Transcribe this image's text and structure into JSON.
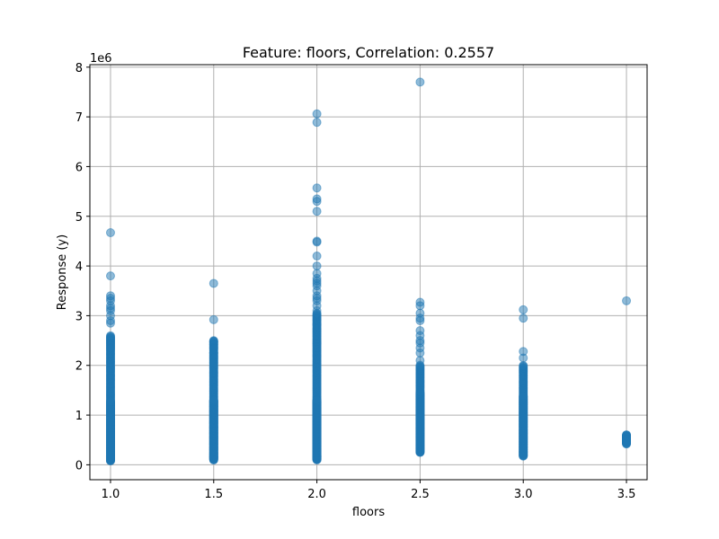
{
  "chart_data": {
    "type": "scatter",
    "title": "Feature: floors, Correlation: 0.2557",
    "xlabel": "floors",
    "ylabel": "Response (y)",
    "y_offset_label": "1e6",
    "xlim": [
      0.9,
      3.6
    ],
    "ylim": [
      -0.3,
      8.05
    ],
    "y_scale_factor": 1000000,
    "x_ticks": [
      1.0,
      1.5,
      2.0,
      2.5,
      3.0,
      3.5
    ],
    "x_tick_labels": [
      "1.0",
      "1.5",
      "2.0",
      "2.5",
      "3.0",
      "3.5"
    ],
    "y_ticks": [
      0,
      1,
      2,
      3,
      4,
      5,
      6,
      7,
      8
    ],
    "y_tick_labels": [
      "0",
      "1",
      "2",
      "3",
      "4",
      "5",
      "6",
      "7",
      "8"
    ],
    "grid": true,
    "marker_color": "#1f77b4",
    "marker_alpha": 0.5,
    "groups": [
      {
        "x": 1.0,
        "dense_range": [
          0.08,
          2.6
        ],
        "points": [
          4.67,
          3.8,
          3.4,
          3.35,
          3.3,
          3.2,
          3.15,
          3.1,
          3.0,
          2.9,
          2.85,
          2.55,
          2.5,
          2.45,
          2.4,
          2.35
        ]
      },
      {
        "x": 1.5,
        "dense_range": [
          0.1,
          2.5
        ],
        "points": [
          3.65,
          2.92,
          2.48,
          2.42,
          2.35,
          2.25,
          2.15,
          2.05
        ]
      },
      {
        "x": 2.0,
        "dense_range": [
          0.1,
          3.05
        ],
        "points": [
          7.06,
          6.89,
          5.57,
          5.35,
          5.3,
          5.1,
          4.5,
          4.48,
          4.2,
          4.0,
          3.85,
          3.75,
          3.7,
          3.65,
          3.6,
          3.5,
          3.4,
          3.35,
          3.3,
          3.2,
          3.1
        ]
      },
      {
        "x": 2.5,
        "dense_range": [
          0.25,
          2.0
        ],
        "points": [
          7.7,
          3.27,
          3.2,
          3.05,
          2.95,
          2.9,
          2.7,
          2.6,
          2.5,
          2.45,
          2.35,
          2.25,
          2.1
        ]
      },
      {
        "x": 3.0,
        "dense_range": [
          0.18,
          2.0
        ],
        "points": [
          3.12,
          2.95,
          2.28,
          2.15
        ]
      },
      {
        "x": 3.5,
        "dense_range": [
          0.42,
          0.6
        ],
        "points": [
          3.3,
          0.6,
          0.58,
          0.55,
          0.52,
          0.5,
          0.47,
          0.44
        ]
      }
    ]
  }
}
